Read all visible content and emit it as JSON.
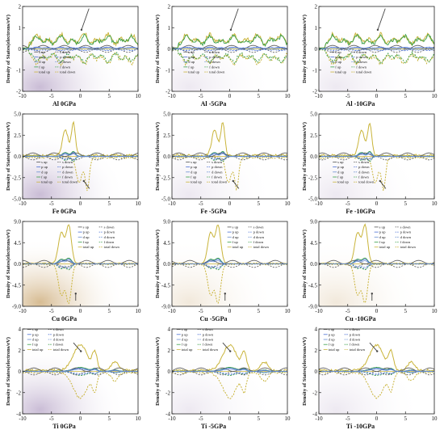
{
  "figure": {
    "ylabel": "Density of States(electrons/eV)",
    "legend_labels": [
      "s up",
      "s down",
      "p up",
      "p down",
      "d up",
      "d down",
      "f up",
      "f down",
      "total up",
      "total down"
    ]
  },
  "colors": {
    "s": "#555555",
    "p": "#4a6fd4",
    "d": "#6a8fd0",
    "f": "#3aa04a",
    "total": "#c9b43a",
    "arrow": "#444444",
    "background_tint": "#b8a6c8"
  },
  "chart_data": [
    {
      "type": "line",
      "title": "Al 0GPa",
      "xlim": [
        -10,
        10
      ],
      "ylim": [
        -2,
        2
      ],
      "xticks": [
        "-10",
        "-5",
        "0",
        "5",
        "10"
      ],
      "yticks": [
        "2",
        "1",
        "0",
        "-1",
        "-2"
      ],
      "material": "Al"
    },
    {
      "type": "line",
      "title": "Al -5GPa",
      "xlim": [
        -10,
        10
      ],
      "ylim": [
        -2,
        2
      ],
      "xticks": [
        "-10",
        "-5",
        "0",
        "5",
        "10"
      ],
      "yticks": [
        "2",
        "1",
        "0",
        "-1",
        "-2"
      ],
      "material": "Al"
    },
    {
      "type": "line",
      "title": "Al -10GPa",
      "xlim": [
        -10,
        10
      ],
      "ylim": [
        -2,
        2
      ],
      "xticks": [
        "-10",
        "-5",
        "0",
        "5",
        "10"
      ],
      "yticks": [
        "2",
        "1",
        "0",
        "-1",
        "-2"
      ],
      "material": "Al"
    },
    {
      "type": "line",
      "title": "Fe 0GPa",
      "xlim": [
        -10,
        10
      ],
      "ylim": [
        -5,
        5
      ],
      "xticks": [
        "-10",
        "-5",
        "0",
        "5",
        "10"
      ],
      "yticks": [
        "5.0",
        "2.5",
        "0.0",
        "-2.5",
        "-5.0"
      ],
      "material": "Fe"
    },
    {
      "type": "line",
      "title": "Fe -5GPa",
      "xlim": [
        -10,
        10
      ],
      "ylim": [
        -5,
        5
      ],
      "xticks": [
        "-10",
        "-5",
        "0",
        "5",
        "10"
      ],
      "yticks": [
        "5.0",
        "2.5",
        "0.0",
        "-2.5",
        "-5.0"
      ],
      "material": "Fe"
    },
    {
      "type": "line",
      "title": "Fe -10GPa",
      "xlim": [
        -10,
        10
      ],
      "ylim": [
        -5,
        5
      ],
      "xticks": [
        "-10",
        "-5",
        "0",
        "5",
        "10"
      ],
      "yticks": [
        "5.0",
        "2.5",
        "0.0",
        "-2.5",
        "-5.0"
      ],
      "material": "Fe"
    },
    {
      "type": "line",
      "title": "Cu 0GPa",
      "xlim": [
        -10,
        10
      ],
      "ylim": [
        -9,
        9
      ],
      "xticks": [
        "-10",
        "-5",
        "0",
        "5",
        "10"
      ],
      "yticks": [
        "9.0",
        "4.5",
        "0.0",
        "-4.5",
        "-9.0"
      ],
      "material": "Cu"
    },
    {
      "type": "line",
      "title": "Cu -5GPa",
      "xlim": [
        -10,
        10
      ],
      "ylim": [
        -9,
        9
      ],
      "xticks": [
        "-10",
        "-5",
        "0",
        "5",
        "10"
      ],
      "yticks": [
        "9.0",
        "4.5",
        "0.0",
        "-4.5",
        "-9.0"
      ],
      "material": "Cu"
    },
    {
      "type": "line",
      "title": "Cu -10GPa",
      "xlim": [
        -10,
        10
      ],
      "ylim": [
        -9,
        9
      ],
      "xticks": [
        "-10",
        "-5",
        "0",
        "5",
        "10"
      ],
      "yticks": [
        "9.0",
        "4.5",
        "0.0",
        "-4.5",
        "-9.0"
      ],
      "material": "Cu"
    },
    {
      "type": "line",
      "title": "Ti 0GPa",
      "xlim": [
        -10,
        10
      ],
      "ylim": [
        -4,
        4
      ],
      "xticks": [
        "-10",
        "-5",
        "0",
        "5",
        "10"
      ],
      "yticks": [
        "4",
        "2",
        "0",
        "-2",
        "-4"
      ],
      "material": "Ti"
    },
    {
      "type": "line",
      "title": "Ti -5GPa",
      "xlim": [
        -10,
        10
      ],
      "ylim": [
        -4,
        4
      ],
      "xticks": [
        "-10",
        "-5",
        "0",
        "5",
        "10"
      ],
      "yticks": [
        "4",
        "2",
        "0",
        "-2",
        "-4"
      ],
      "material": "Ti"
    },
    {
      "type": "line",
      "title": "Ti -10GPa",
      "xlim": [
        -10,
        10
      ],
      "ylim": [
        -4,
        4
      ],
      "xticks": [
        "-10",
        "-5",
        "0",
        "5",
        "10"
      ],
      "yticks": [
        "4",
        "2",
        "0",
        "-2",
        "-4"
      ],
      "material": "Ti"
    }
  ]
}
